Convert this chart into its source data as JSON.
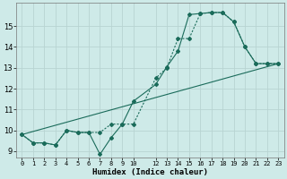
{
  "xlabel": "Humidex (Indice chaleur)",
  "bg_color": "#ceeae8",
  "grid_color": "#b8d4d2",
  "line_color": "#1a6b5a",
  "xlim": [
    -0.5,
    23.5
  ],
  "ylim": [
    8.7,
    16.1
  ],
  "xtick_positions": [
    0,
    1,
    2,
    3,
    4,
    5,
    6,
    7,
    8,
    9,
    10,
    12,
    13,
    14,
    15,
    16,
    17,
    18,
    19,
    20,
    21,
    22,
    23
  ],
  "xtick_labels": [
    "0",
    "1",
    "2",
    "3",
    "4",
    "5",
    "6",
    "7",
    "8",
    "9",
    "10",
    "12",
    "13",
    "14",
    "15",
    "16",
    "17",
    "18",
    "19",
    "20",
    "21",
    "22",
    "23"
  ],
  "ytick_positions": [
    9,
    10,
    11,
    12,
    13,
    14,
    15
  ],
  "ytick_labels": [
    "9",
    "10",
    "11",
    "12",
    "13",
    "14",
    "15"
  ],
  "line1_x": [
    0,
    1,
    2,
    3,
    4,
    5,
    6,
    7,
    8,
    9,
    10,
    12,
    13,
    14,
    15,
    16,
    17,
    18,
    19,
    20,
    21,
    22,
    23
  ],
  "line1_y": [
    9.8,
    9.4,
    9.4,
    9.3,
    10.0,
    9.9,
    9.9,
    8.85,
    9.65,
    10.3,
    11.4,
    12.2,
    13.05,
    13.8,
    15.55,
    15.6,
    15.65,
    15.65,
    15.2,
    14.0,
    13.2,
    13.2,
    13.2
  ],
  "line2_x": [
    0,
    1,
    2,
    3,
    4,
    5,
    6,
    7,
    8,
    9,
    10,
    12,
    13,
    14,
    15,
    16,
    17,
    18,
    19,
    20,
    21,
    22,
    23
  ],
  "line2_y": [
    9.8,
    9.4,
    9.4,
    9.3,
    10.0,
    9.9,
    9.9,
    9.9,
    10.3,
    10.3,
    10.3,
    12.5,
    13.0,
    14.4,
    14.4,
    15.6,
    15.65,
    15.65,
    15.2,
    14.0,
    13.2,
    13.2,
    13.2
  ],
  "line3_x": [
    0,
    23
  ],
  "line3_y": [
    9.8,
    13.2
  ]
}
